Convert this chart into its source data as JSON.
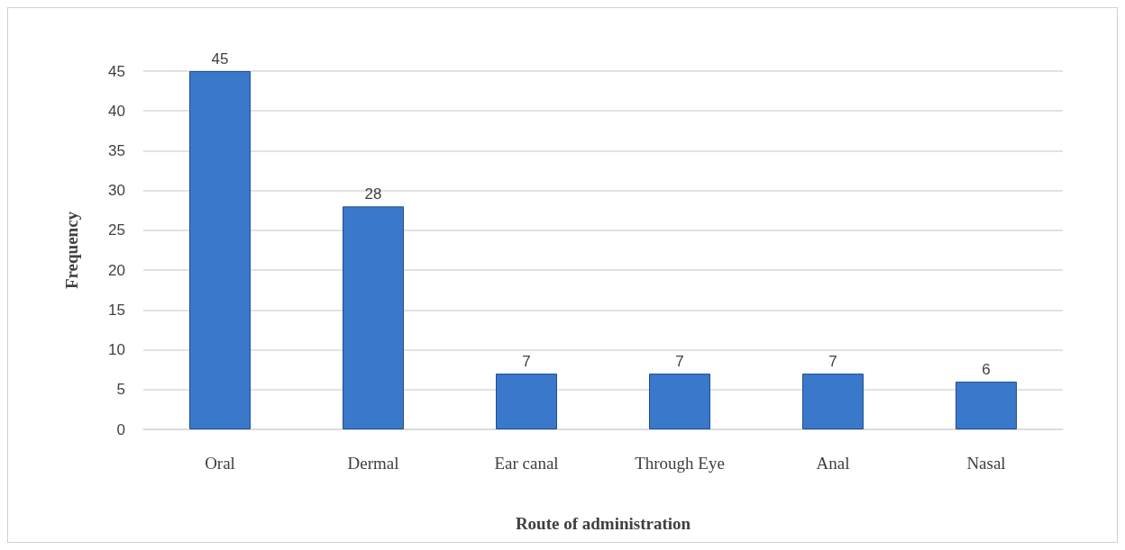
{
  "chart_data": {
    "type": "bar",
    "xlabel": "Route of administration",
    "ylabel": "Frequency",
    "categories": [
      "Oral",
      "Dermal",
      "Ear canal",
      "Through Eye",
      "Anal",
      "Nasal"
    ],
    "values": [
      45,
      28,
      7,
      7,
      7,
      6
    ],
    "color": "#3a78cc",
    "ylim": [
      0,
      45
    ],
    "yticks": [
      0,
      5,
      10,
      15,
      20,
      25,
      30,
      35,
      40,
      45
    ],
    "grid": "y",
    "data_labels": true
  }
}
